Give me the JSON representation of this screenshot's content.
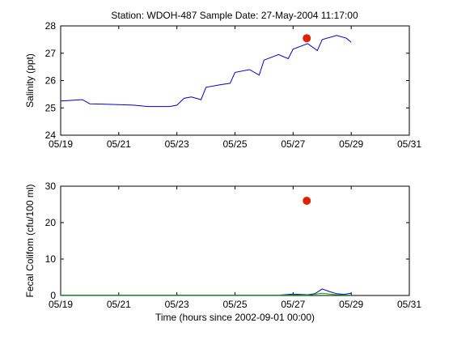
{
  "title": "Station: WDOH-487  Sample Date: 27-May-2004 11:17:00",
  "chart_data": [
    {
      "type": "line",
      "ylabel": "Salinity (ppt)",
      "xlabel": "",
      "xlim": [
        "05/19",
        "05/31"
      ],
      "ylim": [
        24,
        28
      ],
      "x_ticks": [
        "05/19",
        "05/21",
        "05/23",
        "05/25",
        "05/27",
        "05/29",
        "05/31"
      ],
      "y_ticks": [
        "24",
        "25",
        "26",
        "27",
        "28"
      ],
      "series": [
        {
          "color": "#0000cc",
          "x": [
            "05/19 00:00",
            "05/19 18:00",
            "05/20 00:00",
            "05/21 00:00",
            "05/21 12:00",
            "05/22 00:00",
            "05/22 18:00",
            "05/23 00:00",
            "05/23 06:00",
            "05/23 12:00",
            "05/23 20:00",
            "05/24 00:00",
            "05/24 12:00",
            "05/24 20:00",
            "05/25 00:00",
            "05/25 12:00",
            "05/25 20:00",
            "05/26 00:00",
            "05/26 12:00",
            "05/26 20:00",
            "05/27 00:00",
            "05/27 12:00",
            "05/27 20:00",
            "05/28 00:00",
            "05/28 12:00",
            "05/28 20:00",
            "05/29 00:00"
          ],
          "y": [
            25.25,
            25.3,
            25.15,
            25.12,
            25.1,
            25.05,
            25.05,
            25.1,
            25.35,
            25.4,
            25.3,
            25.75,
            25.85,
            25.9,
            26.3,
            26.4,
            26.2,
            26.75,
            26.95,
            26.8,
            27.15,
            27.35,
            27.1,
            27.5,
            27.65,
            27.55,
            27.4
          ]
        }
      ],
      "sample_point": {
        "x": "05/27 11:17",
        "y": 27.55,
        "color": "#dd2200"
      }
    },
    {
      "type": "line",
      "ylabel": "Fecal Colifom (cfu/100 ml)",
      "xlabel": "Time (hours since 2002-09-01 00:00)",
      "xlim": [
        "05/19",
        "05/31"
      ],
      "ylim": [
        0,
        30
      ],
      "x_ticks": [
        "05/19",
        "05/21",
        "05/23",
        "05/25",
        "05/27",
        "05/29",
        "05/31"
      ],
      "y_ticks": [
        "0",
        "10",
        "20",
        "30"
      ],
      "series": [
        {
          "color": "#0000cc",
          "x": [
            "05/19 00:00",
            "05/26 12:00",
            "05/27 00:00",
            "05/27 12:00",
            "05/27 18:00",
            "05/28 00:00",
            "05/28 06:00",
            "05/28 12:00",
            "05/28 18:00",
            "05/29 00:00"
          ],
          "y": [
            0.1,
            0.1,
            0.4,
            0.2,
            0.5,
            1.8,
            1.1,
            0.5,
            0.3,
            0.6
          ]
        },
        {
          "color": "#00aa00",
          "x": [
            "05/19 00:00",
            "05/26 12:00",
            "05/27 00:00",
            "05/27 12:00",
            "05/28 00:00",
            "05/28 12:00",
            "05/29 00:00"
          ],
          "y": [
            0.05,
            0.05,
            0.15,
            0.1,
            0.6,
            0.2,
            0.1
          ]
        }
      ],
      "sample_point": {
        "x": "05/27 11:17",
        "y": 26,
        "color": "#dd2200"
      }
    }
  ]
}
